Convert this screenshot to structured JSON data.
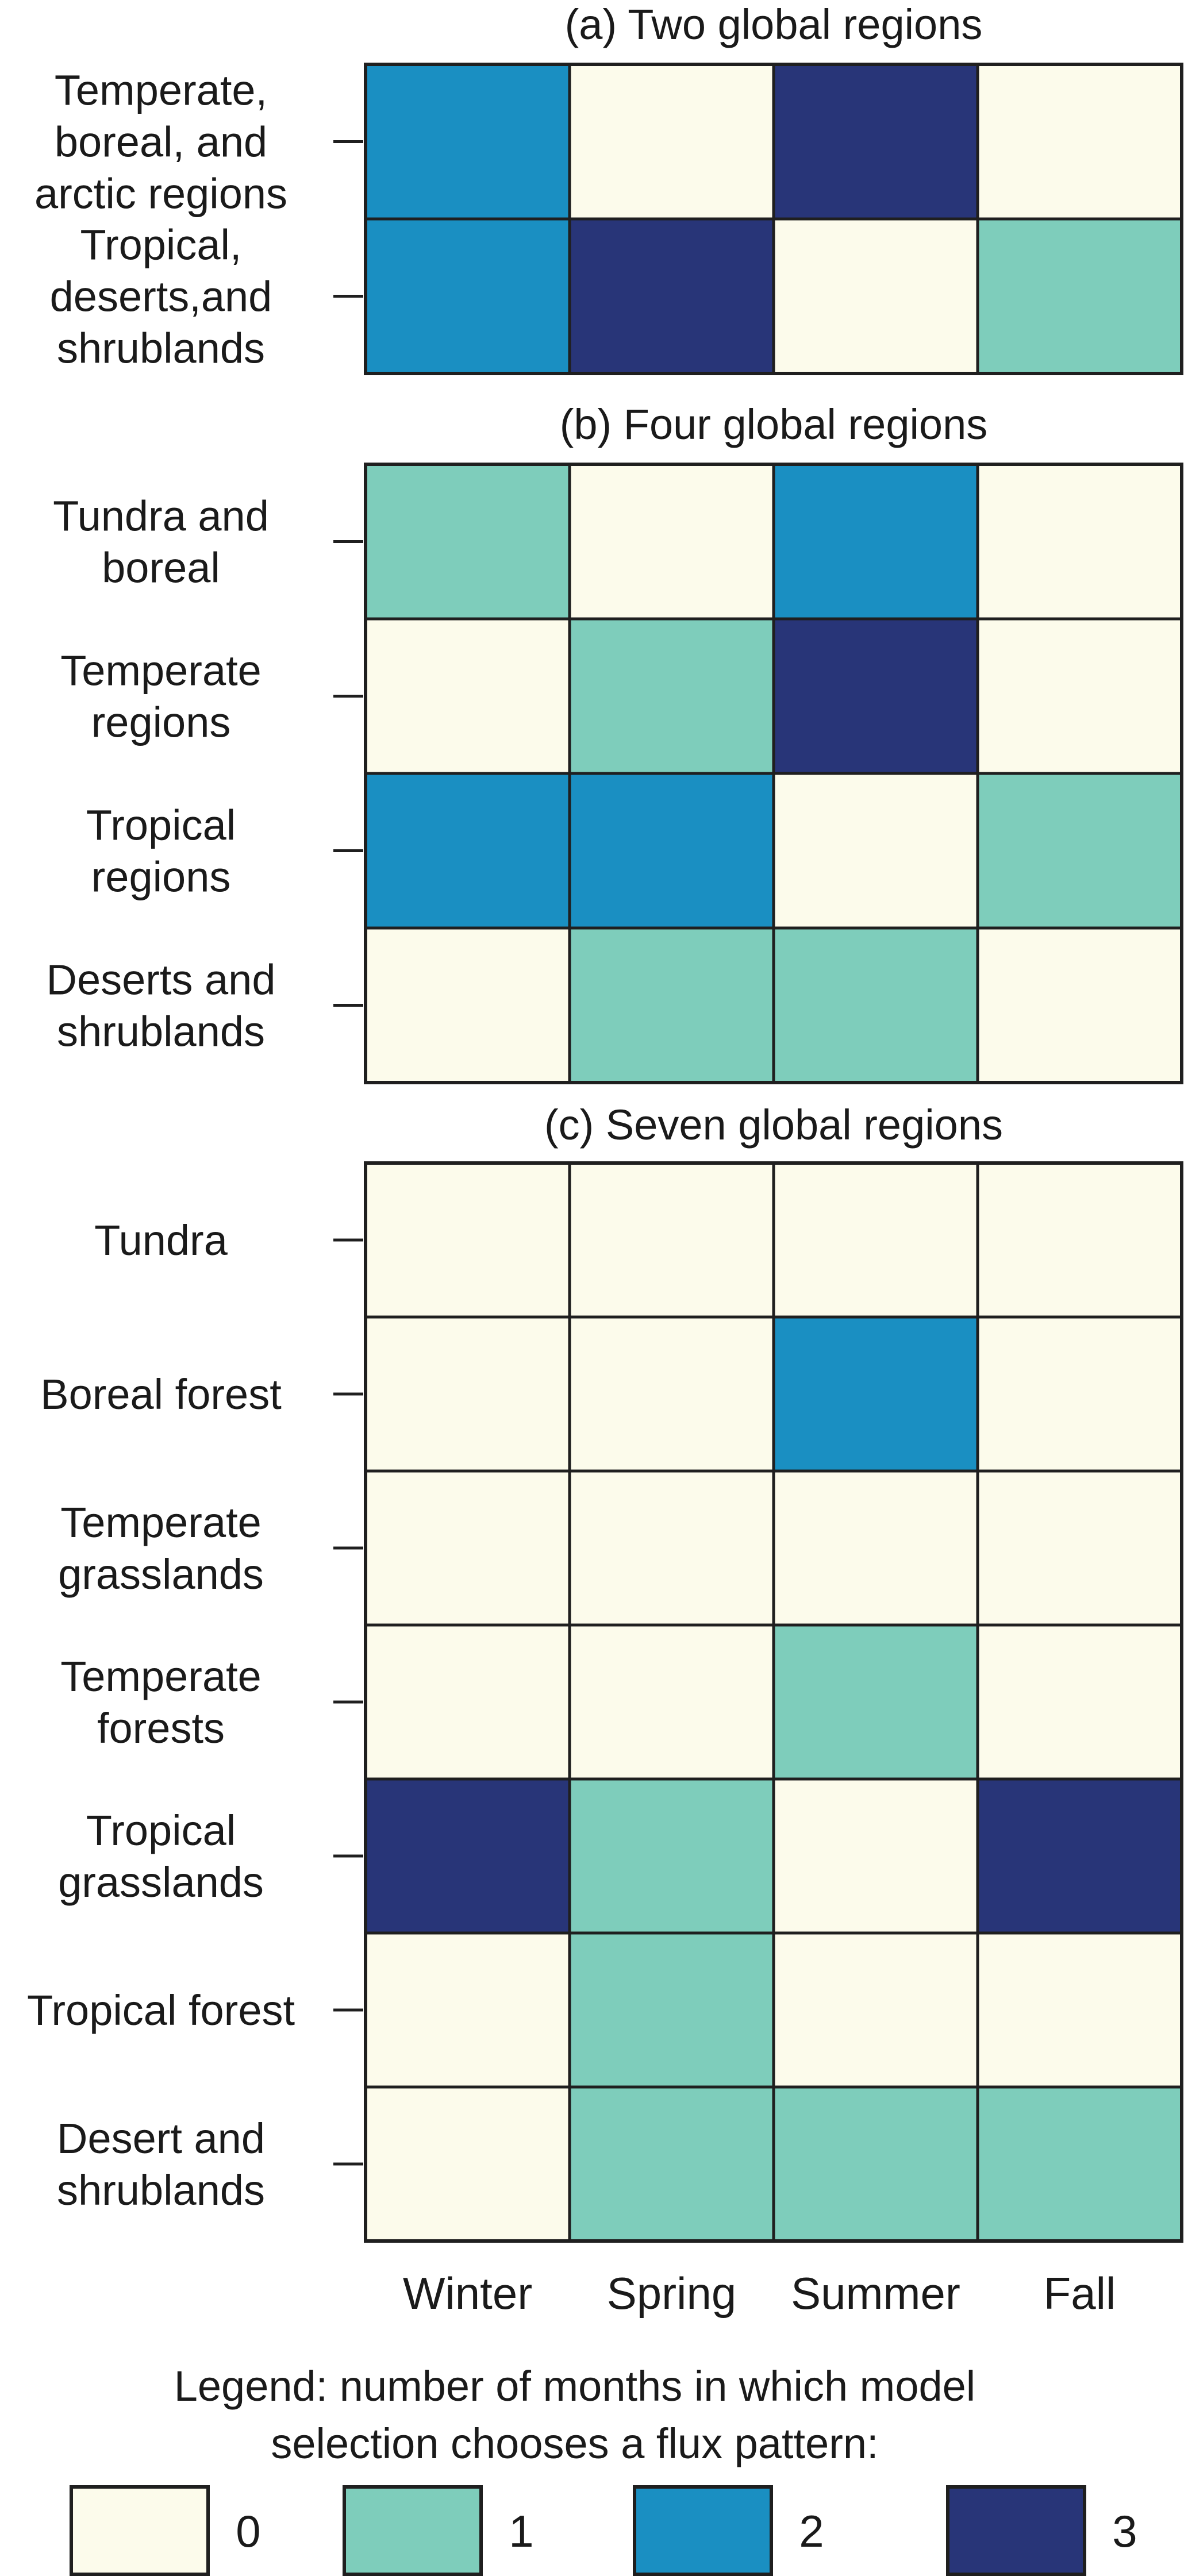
{
  "chart_data": {
    "type": "heatmap",
    "colors": {
      "0": "#fcfbeb",
      "1": "#7ecdbb",
      "2": "#1a8fc2",
      "3": "#283578"
    },
    "columns": [
      "Winter",
      "Spring",
      "Summer",
      "Fall"
    ],
    "panels": [
      {
        "title": "(a) Two global regions",
        "rows": [
          {
            "label": [
              "Temperate,",
              "boreal, and",
              "arctic regions"
            ],
            "values": [
              2,
              0,
              3,
              0
            ]
          },
          {
            "label": [
              "Tropical,",
              "deserts,and",
              "shrublands"
            ],
            "values": [
              2,
              3,
              0,
              1
            ]
          }
        ]
      },
      {
        "title": "(b) Four global regions",
        "rows": [
          {
            "label": [
              "Tundra and",
              "boreal"
            ],
            "values": [
              1,
              0,
              2,
              0
            ]
          },
          {
            "label": [
              "Temperate",
              "regions"
            ],
            "values": [
              0,
              1,
              3,
              0
            ]
          },
          {
            "label": [
              "Tropical",
              "regions"
            ],
            "values": [
              2,
              2,
              0,
              1
            ]
          },
          {
            "label": [
              "Deserts and",
              "shrublands"
            ],
            "values": [
              0,
              1,
              1,
              0
            ]
          }
        ]
      },
      {
        "title": "(c) Seven global regions",
        "rows": [
          {
            "label": [
              "Tundra"
            ],
            "values": [
              0,
              0,
              0,
              0
            ]
          },
          {
            "label": [
              "Boreal forest"
            ],
            "values": [
              0,
              0,
              2,
              0
            ]
          },
          {
            "label": [
              "Temperate",
              "grasslands"
            ],
            "values": [
              0,
              0,
              0,
              0
            ]
          },
          {
            "label": [
              "Temperate",
              "forests"
            ],
            "values": [
              0,
              0,
              1,
              0
            ]
          },
          {
            "label": [
              "Tropical",
              "grasslands"
            ],
            "values": [
              3,
              1,
              0,
              3
            ]
          },
          {
            "label": [
              "Tropical forest"
            ],
            "values": [
              0,
              1,
              0,
              0
            ]
          },
          {
            "label": [
              "Desert and",
              "shrublands"
            ],
            "values": [
              0,
              1,
              1,
              1
            ]
          }
        ]
      }
    ],
    "legend": {
      "title": [
        "Legend: number of months in which model",
        "selection chooses a flux pattern:"
      ],
      "items": [
        0,
        1,
        2,
        3
      ]
    }
  }
}
